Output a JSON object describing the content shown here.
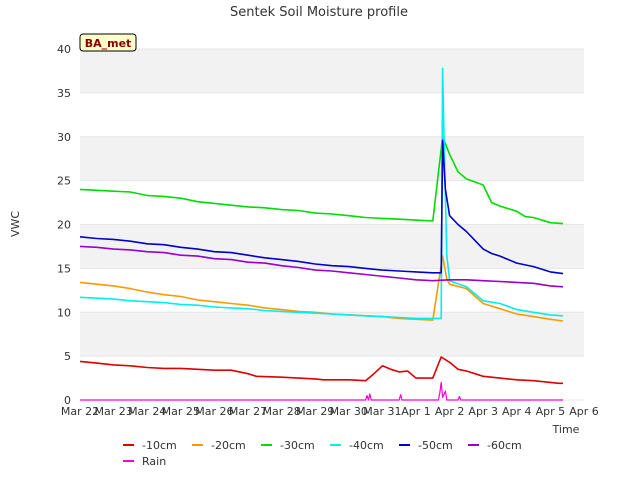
{
  "chart_data": {
    "type": "line",
    "title": "Sentek Soil Moisture profile",
    "xlabel": "Time",
    "ylabel": "VWC",
    "site_label": "BA_met",
    "ylim": [
      0,
      40
    ],
    "yticks": [
      0,
      5,
      10,
      15,
      20,
      25,
      30,
      35,
      40
    ],
    "xlim": [
      "2022-03-22",
      "2022-04-06"
    ],
    "xticks": [
      "Mar 22",
      "Mar 23",
      "Mar 24",
      "Mar 25",
      "Mar 26",
      "Mar 27",
      "Mar 28",
      "Mar 29",
      "Mar 30",
      "Mar 31",
      "Apr 1",
      "Apr 2",
      "Apr 3",
      "Apr 4",
      "Apr 5",
      "Apr 6"
    ],
    "grid": "alternating horizontal bands",
    "legend_position": "bottom",
    "series": [
      {
        "name": "-10cm",
        "color": "#dd0000",
        "points": [
          [
            "03-22",
            4.4
          ],
          [
            "03-22 12:00",
            4.2
          ],
          [
            "03-23",
            4.0
          ],
          [
            "03-23 12:00",
            3.9
          ],
          [
            "03-24",
            3.7
          ],
          [
            "03-24 12:00",
            3.6
          ],
          [
            "03-25",
            3.6
          ],
          [
            "03-25 12:00",
            3.5
          ],
          [
            "03-26",
            3.4
          ],
          [
            "03-26 12:00",
            3.4
          ],
          [
            "03-27",
            3.0
          ],
          [
            "03-27 06:00",
            2.7
          ],
          [
            "03-28",
            2.6
          ],
          [
            "03-28 12:00",
            2.5
          ],
          [
            "03-29",
            2.4
          ],
          [
            "03-29 06:00",
            2.3
          ],
          [
            "03-30",
            2.3
          ],
          [
            "03-30 12:00",
            2.2
          ],
          [
            "03-30 18:00",
            3.0
          ],
          [
            "03-31",
            3.9
          ],
          [
            "03-31 06:00",
            3.5
          ],
          [
            "03-31 12:00",
            3.2
          ],
          [
            "03-31 18:00",
            3.3
          ],
          [
            "04-01",
            2.5
          ],
          [
            "04-01 12:00",
            2.5
          ],
          [
            "04-01 18:00",
            4.9
          ],
          [
            "04-02",
            4.3
          ],
          [
            "04-02 06:00",
            3.5
          ],
          [
            "04-02 12:00",
            3.3
          ],
          [
            "04-03",
            2.7
          ],
          [
            "04-03 12:00",
            2.5
          ],
          [
            "04-04",
            2.3
          ],
          [
            "04-04 12:00",
            2.2
          ],
          [
            "04-05",
            2.0
          ],
          [
            "04-05 06:00",
            1.9
          ],
          [
            "04-05 09:00",
            1.9
          ]
        ]
      },
      {
        "name": "-20cm",
        "color": "#ff9900",
        "points": [
          [
            "03-22",
            13.4
          ],
          [
            "03-22 12:00",
            13.2
          ],
          [
            "03-23",
            13.0
          ],
          [
            "03-23 12:00",
            12.7
          ],
          [
            "03-24",
            12.3
          ],
          [
            "03-24 12:00",
            12.0
          ],
          [
            "03-25",
            11.8
          ],
          [
            "03-25 12:00",
            11.4
          ],
          [
            "03-26",
            11.2
          ],
          [
            "03-26 12:00",
            11.0
          ],
          [
            "03-27",
            10.8
          ],
          [
            "03-27 12:00",
            10.5
          ],
          [
            "03-28",
            10.3
          ],
          [
            "03-28 12:00",
            10.1
          ],
          [
            "03-29",
            10.0
          ],
          [
            "03-29 12:00",
            9.8
          ],
          [
            "03-30",
            9.7
          ],
          [
            "03-30 12:00",
            9.6
          ],
          [
            "03-31",
            9.5
          ],
          [
            "03-31 12:00",
            9.3
          ],
          [
            "04-01",
            9.2
          ],
          [
            "04-01 12:00",
            9.1
          ],
          [
            "04-01 19:00",
            16.4
          ],
          [
            "04-01 22:00",
            13.8
          ],
          [
            "04-02",
            13.2
          ],
          [
            "04-02 12:00",
            12.7
          ],
          [
            "04-03",
            11.0
          ],
          [
            "04-03 12:00",
            10.4
          ],
          [
            "04-04",
            9.8
          ],
          [
            "04-04 12:00",
            9.5
          ],
          [
            "04-05",
            9.2
          ],
          [
            "04-05 09:00",
            9.0
          ]
        ]
      },
      {
        "name": "-30cm",
        "color": "#00dd00",
        "points": [
          [
            "03-22",
            24.0
          ],
          [
            "03-22 12:00",
            23.9
          ],
          [
            "03-23",
            23.8
          ],
          [
            "03-23 12:00",
            23.7
          ],
          [
            "03-24",
            23.3
          ],
          [
            "03-24 12:00",
            23.2
          ],
          [
            "03-25",
            23.0
          ],
          [
            "03-25 12:00",
            22.6
          ],
          [
            "03-26",
            22.4
          ],
          [
            "03-26 12:00",
            22.2
          ],
          [
            "03-27",
            22.0
          ],
          [
            "03-27 12:00",
            21.9
          ],
          [
            "03-28",
            21.7
          ],
          [
            "03-28 12:00",
            21.6
          ],
          [
            "03-29",
            21.3
          ],
          [
            "03-29 12:00",
            21.2
          ],
          [
            "03-30",
            21.0
          ],
          [
            "03-30 12:00",
            20.8
          ],
          [
            "03-31",
            20.7
          ],
          [
            "03-31 12:00",
            20.6
          ],
          [
            "04-01",
            20.5
          ],
          [
            "04-01 12:00",
            20.4
          ],
          [
            "04-01 19:00",
            30.0
          ],
          [
            "04-02",
            28.0
          ],
          [
            "04-02 06:00",
            26.0
          ],
          [
            "04-02 12:00",
            25.2
          ],
          [
            "04-03",
            24.5
          ],
          [
            "04-03 06:00",
            22.5
          ],
          [
            "04-03 12:00",
            22.1
          ],
          [
            "04-04",
            21.5
          ],
          [
            "04-04 06:00",
            20.9
          ],
          [
            "04-04 12:00",
            20.8
          ],
          [
            "04-05",
            20.2
          ],
          [
            "04-05 09:00",
            20.1
          ]
        ]
      },
      {
        "name": "-40cm",
        "color": "#00eeee",
        "points": [
          [
            "03-22",
            11.7
          ],
          [
            "03-22 12:00",
            11.6
          ],
          [
            "03-23",
            11.5
          ],
          [
            "03-23 12:00",
            11.3
          ],
          [
            "03-24",
            11.2
          ],
          [
            "03-24 12:00",
            11.1
          ],
          [
            "03-25",
            10.9
          ],
          [
            "03-25 12:00",
            10.8
          ],
          [
            "03-26",
            10.6
          ],
          [
            "03-26 12:00",
            10.5
          ],
          [
            "03-27",
            10.4
          ],
          [
            "03-27 12:00",
            10.2
          ],
          [
            "03-28",
            10.1
          ],
          [
            "03-28 12:00",
            10.0
          ],
          [
            "03-29",
            9.9
          ],
          [
            "03-29 12:00",
            9.8
          ],
          [
            "03-30",
            9.7
          ],
          [
            "03-30 12:00",
            9.6
          ],
          [
            "03-31",
            9.5
          ],
          [
            "03-31 12:00",
            9.4
          ],
          [
            "04-01",
            9.3
          ],
          [
            "04-01 12:00",
            9.3
          ],
          [
            "04-01 18:00",
            9.3
          ],
          [
            "04-01 19:00",
            37.8
          ],
          [
            "04-01 20:00",
            30.0
          ],
          [
            "04-01 22:00",
            16.5
          ],
          [
            "04-02",
            13.6
          ],
          [
            "04-02 12:00",
            12.9
          ],
          [
            "04-03",
            11.3
          ],
          [
            "04-03 12:00",
            11.0
          ],
          [
            "04-04",
            10.3
          ],
          [
            "04-04 12:00",
            10.0
          ],
          [
            "04-05",
            9.7
          ],
          [
            "04-05 09:00",
            9.6
          ]
        ]
      },
      {
        "name": "-50cm",
        "color": "#0000cc",
        "points": [
          [
            "03-22",
            18.6
          ],
          [
            "03-22 12:00",
            18.4
          ],
          [
            "03-23",
            18.3
          ],
          [
            "03-23 12:00",
            18.1
          ],
          [
            "03-24",
            17.8
          ],
          [
            "03-24 12:00",
            17.7
          ],
          [
            "03-25",
            17.4
          ],
          [
            "03-25 12:00",
            17.2
          ],
          [
            "03-26",
            16.9
          ],
          [
            "03-26 12:00",
            16.8
          ],
          [
            "03-27",
            16.5
          ],
          [
            "03-27 12:00",
            16.2
          ],
          [
            "03-28",
            16.0
          ],
          [
            "03-28 12:00",
            15.8
          ],
          [
            "03-29",
            15.5
          ],
          [
            "03-29 12:00",
            15.3
          ],
          [
            "03-30",
            15.2
          ],
          [
            "03-30 12:00",
            15.0
          ],
          [
            "03-31",
            14.8
          ],
          [
            "03-31 12:00",
            14.7
          ],
          [
            "04-01",
            14.6
          ],
          [
            "04-01 12:00",
            14.5
          ],
          [
            "04-01 18:00",
            14.5
          ],
          [
            "04-01 19:00",
            29.6
          ],
          [
            "04-01 21:00",
            24.0
          ],
          [
            "04-02",
            21.0
          ],
          [
            "04-02 06:00",
            20.0
          ],
          [
            "04-02 12:00",
            19.2
          ],
          [
            "04-03",
            17.2
          ],
          [
            "04-03 06:00",
            16.7
          ],
          [
            "04-03 12:00",
            16.4
          ],
          [
            "04-04",
            15.6
          ],
          [
            "04-04 12:00",
            15.2
          ],
          [
            "04-05",
            14.6
          ],
          [
            "04-05 09:00",
            14.4
          ]
        ]
      },
      {
        "name": "-60cm",
        "color": "#9900cc",
        "points": [
          [
            "03-22",
            17.5
          ],
          [
            "03-22 12:00",
            17.4
          ],
          [
            "03-23",
            17.2
          ],
          [
            "03-23 12:00",
            17.1
          ],
          [
            "03-24",
            16.9
          ],
          [
            "03-24 12:00",
            16.8
          ],
          [
            "03-25",
            16.5
          ],
          [
            "03-25 12:00",
            16.4
          ],
          [
            "03-26",
            16.1
          ],
          [
            "03-26 12:00",
            16.0
          ],
          [
            "03-27",
            15.7
          ],
          [
            "03-27 12:00",
            15.6
          ],
          [
            "03-28",
            15.3
          ],
          [
            "03-28 12:00",
            15.1
          ],
          [
            "03-29",
            14.8
          ],
          [
            "03-29 12:00",
            14.7
          ],
          [
            "03-30",
            14.5
          ],
          [
            "03-30 12:00",
            14.3
          ],
          [
            "03-31",
            14.1
          ],
          [
            "03-31 12:00",
            13.9
          ],
          [
            "04-01",
            13.7
          ],
          [
            "04-01 12:00",
            13.6
          ],
          [
            "04-02",
            13.7
          ],
          [
            "04-02 12:00",
            13.7
          ],
          [
            "04-03",
            13.6
          ],
          [
            "04-03 12:00",
            13.5
          ],
          [
            "04-04",
            13.4
          ],
          [
            "04-04 12:00",
            13.3
          ],
          [
            "04-05",
            13.0
          ],
          [
            "04-05 09:00",
            12.9
          ]
        ]
      },
      {
        "name": "Rain",
        "color": "#ff00cc",
        "points": [
          [
            "03-22",
            0
          ],
          [
            "03-30 12:00",
            0
          ],
          [
            "03-30 13:00",
            0.5
          ],
          [
            "03-30 14:00",
            0
          ],
          [
            "03-30 15:00",
            0.7
          ],
          [
            "03-30 16:00",
            0
          ],
          [
            "03-31 12:00",
            0
          ],
          [
            "03-31 13:00",
            0.6
          ],
          [
            "03-31 14:00",
            0
          ],
          [
            "04-01 16:00",
            0
          ],
          [
            "04-01 17:00",
            0.8
          ],
          [
            "04-01 18:00",
            2.0
          ],
          [
            "04-01 19:00",
            0.3
          ],
          [
            "04-01 21:00",
            1.0
          ],
          [
            "04-01 22:00",
            0
          ],
          [
            "04-02 06:00",
            0
          ],
          [
            "04-02 07:00",
            0.4
          ],
          [
            "04-02 08:00",
            0
          ],
          [
            "04-05 09:00",
            0
          ]
        ]
      }
    ]
  }
}
